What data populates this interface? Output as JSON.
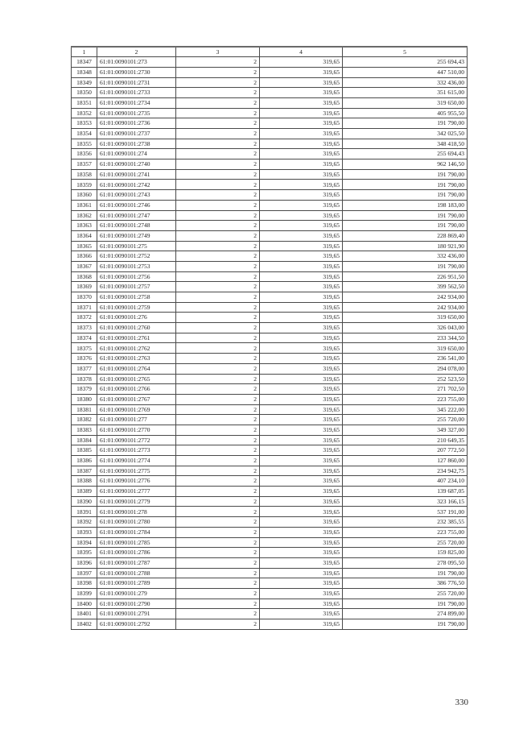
{
  "page": {
    "number": "330"
  },
  "table": {
    "headers": [
      "1",
      "2",
      "3",
      "4",
      "5"
    ],
    "rows": [
      [
        "18347",
        "61:01:0090101:273",
        "2",
        "319,65",
        "255 694,43"
      ],
      [
        "18348",
        "61:01:0090101:2730",
        "2",
        "319,65",
        "447 510,00"
      ],
      [
        "18349",
        "61:01:0090101:2731",
        "2",
        "319,65",
        "332 436,00"
      ],
      [
        "18350",
        "61:01:0090101:2733",
        "2",
        "319,65",
        "351 615,00"
      ],
      [
        "18351",
        "61:01:0090101:2734",
        "2",
        "319,65",
        "319 650,00"
      ],
      [
        "18352",
        "61:01:0090101:2735",
        "2",
        "319,65",
        "405 955,50"
      ],
      [
        "18353",
        "61:01:0090101:2736",
        "2",
        "319,65",
        "191 790,00"
      ],
      [
        "18354",
        "61:01:0090101:2737",
        "2",
        "319,65",
        "342 025,50"
      ],
      [
        "18355",
        "61:01:0090101:2738",
        "2",
        "319,65",
        "348 418,50"
      ],
      [
        "18356",
        "61:01:0090101:274",
        "2",
        "319,65",
        "255 694,43"
      ],
      [
        "18357",
        "61:01:0090101:2740",
        "2",
        "319,65",
        "962 146,50"
      ],
      [
        "18358",
        "61:01:0090101:2741",
        "2",
        "319,65",
        "191 790,00"
      ],
      [
        "18359",
        "61:01:0090101:2742",
        "2",
        "319,65",
        "191 790,00"
      ],
      [
        "18360",
        "61:01:0090101:2743",
        "2",
        "319,65",
        "191 790,00"
      ],
      [
        "18361",
        "61:01:0090101:2746",
        "2",
        "319,65",
        "198 183,00"
      ],
      [
        "18362",
        "61:01:0090101:2747",
        "2",
        "319,65",
        "191 790,00"
      ],
      [
        "18363",
        "61:01:0090101:2748",
        "2",
        "319,65",
        "191 790,00"
      ],
      [
        "18364",
        "61:01:0090101:2749",
        "2",
        "319,65",
        "228 869,40"
      ],
      [
        "18365",
        "61:01:0090101:275",
        "2",
        "319,65",
        "180 921,90"
      ],
      [
        "18366",
        "61:01:0090101:2752",
        "2",
        "319,65",
        "332 436,00"
      ],
      [
        "18367",
        "61:01:0090101:2753",
        "2",
        "319,65",
        "191 790,00"
      ],
      [
        "18368",
        "61:01:0090101:2756",
        "2",
        "319,65",
        "226 951,50"
      ],
      [
        "18369",
        "61:01:0090101:2757",
        "2",
        "319,65",
        "399 562,50"
      ],
      [
        "18370",
        "61:01:0090101:2758",
        "2",
        "319,65",
        "242 934,00"
      ],
      [
        "18371",
        "61:01:0090101:2759",
        "2",
        "319,65",
        "242 934,00"
      ],
      [
        "18372",
        "61:01:0090101:276",
        "2",
        "319,65",
        "319 650,00"
      ],
      [
        "18373",
        "61:01:0090101:2760",
        "2",
        "319,65",
        "326 043,00"
      ],
      [
        "18374",
        "61:01:0090101:2761",
        "2",
        "319,65",
        "233 344,50"
      ],
      [
        "18375",
        "61:01:0090101:2762",
        "2",
        "319,65",
        "319 650,00"
      ],
      [
        "18376",
        "61:01:0090101:2763",
        "2",
        "319,65",
        "236 541,00"
      ],
      [
        "18377",
        "61:01:0090101:2764",
        "2",
        "319,65",
        "294 078,00"
      ],
      [
        "18378",
        "61:01:0090101:2765",
        "2",
        "319,65",
        "252 523,50"
      ],
      [
        "18379",
        "61:01:0090101:2766",
        "2",
        "319,65",
        "271 702,50"
      ],
      [
        "18380",
        "61:01:0090101:2767",
        "2",
        "319,65",
        "223 755,00"
      ],
      [
        "18381",
        "61:01:0090101:2769",
        "2",
        "319,65",
        "345 222,00"
      ],
      [
        "18382",
        "61:01:0090101:277",
        "2",
        "319,65",
        "255 720,00"
      ],
      [
        "18383",
        "61:01:0090101:2770",
        "2",
        "319,65",
        "349 327,00"
      ],
      [
        "18384",
        "61:01:0090101:2772",
        "2",
        "319,65",
        "210 649,35"
      ],
      [
        "18385",
        "61:01:0090101:2773",
        "2",
        "319,65",
        "207 772,50"
      ],
      [
        "18386",
        "61:01:0090101:2774",
        "2",
        "319,65",
        "127 860,00"
      ],
      [
        "18387",
        "61:01:0090101:2775",
        "2",
        "319,65",
        "234 942,75"
      ],
      [
        "18388",
        "61:01:0090101:2776",
        "2",
        "319,65",
        "407 234,10"
      ],
      [
        "18389",
        "61:01:0090101:2777",
        "2",
        "319,65",
        "139 687,05"
      ],
      [
        "18390",
        "61:01:0090101:2779",
        "2",
        "319,65",
        "323 166,15"
      ],
      [
        "18391",
        "61:01:0090101:278",
        "2",
        "319,65",
        "537 191,00"
      ],
      [
        "18392",
        "61:01:0090101:2780",
        "2",
        "319,65",
        "232 385,55"
      ],
      [
        "18393",
        "61:01:0090101:2784",
        "2",
        "319,65",
        "223 755,00"
      ],
      [
        "18394",
        "61:01:0090101:2785",
        "2",
        "319,65",
        "255 720,00"
      ],
      [
        "18395",
        "61:01:0090101:2786",
        "2",
        "319,65",
        "159 825,00"
      ],
      [
        "18396",
        "61:01:0090101:2787",
        "2",
        "319,65",
        "278 095,50"
      ],
      [
        "18397",
        "61:01:0090101:2788",
        "2",
        "319,65",
        "191 790,00"
      ],
      [
        "18398",
        "61:01:0090101:2789",
        "2",
        "319,65",
        "386 776,50"
      ],
      [
        "18399",
        "61:01:0090101:279",
        "2",
        "319,65",
        "255 720,00"
      ],
      [
        "18400",
        "61:01:0090101:2790",
        "2",
        "319,65",
        "191 790,00"
      ],
      [
        "18401",
        "61:01:0090101:2791",
        "2",
        "319,65",
        "274 899,00"
      ],
      [
        "18402",
        "61:01:0090101:2792",
        "2",
        "319,65",
        "191 790,00"
      ]
    ]
  }
}
